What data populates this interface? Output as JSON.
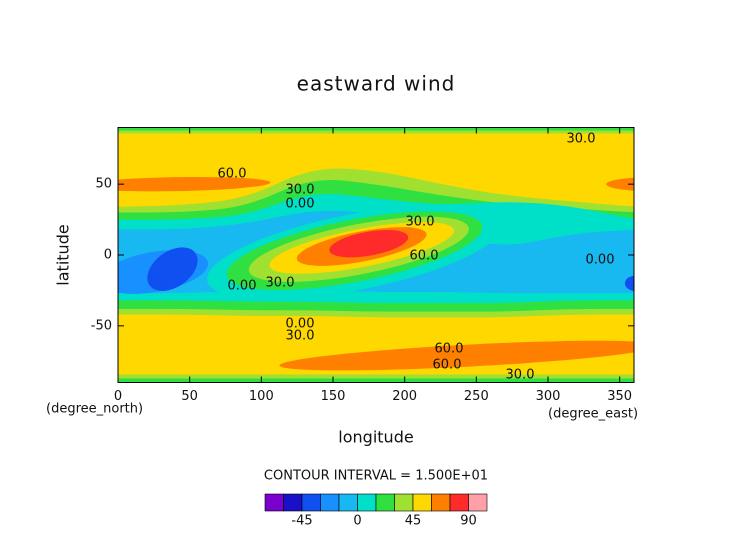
{
  "chart_data": {
    "type": "contour",
    "title": "eastward wind",
    "xlabel": "longitude",
    "ylabel": "latitude",
    "xunits": "(degree_east)",
    "yunits": "(degree_north)",
    "xlim": [
      0,
      360
    ],
    "ylim": [
      -90,
      90
    ],
    "xticks": [
      0,
      50,
      100,
      150,
      200,
      250,
      300,
      350
    ],
    "yticks": [
      -50,
      0,
      50
    ],
    "contour_interval": "CONTOUR INTERVAL = 1.500E+01",
    "levels": [
      -75,
      -60,
      -45,
      -30,
      -15,
      0,
      15,
      30,
      45,
      60,
      75,
      90,
      105
    ],
    "colors": [
      "#7a00d0",
      "#1a10c8",
      "#1050f0",
      "#1890ff",
      "#18b8f0",
      "#00e0c8",
      "#30e040",
      "#a0e030",
      "#ffd800",
      "#ff8000",
      "#ff2a2a",
      "#ffa0a8"
    ],
    "colorbar_ticks": [
      -45,
      0,
      45,
      90
    ],
    "contour_labels": [
      "60.0",
      "30.0",
      "30.0",
      "0.00",
      "30.0",
      "60.0",
      "0.00",
      "0.00",
      "30.0",
      "0.00",
      "30.0",
      "60.0",
      "60.0",
      "30.0"
    ]
  }
}
